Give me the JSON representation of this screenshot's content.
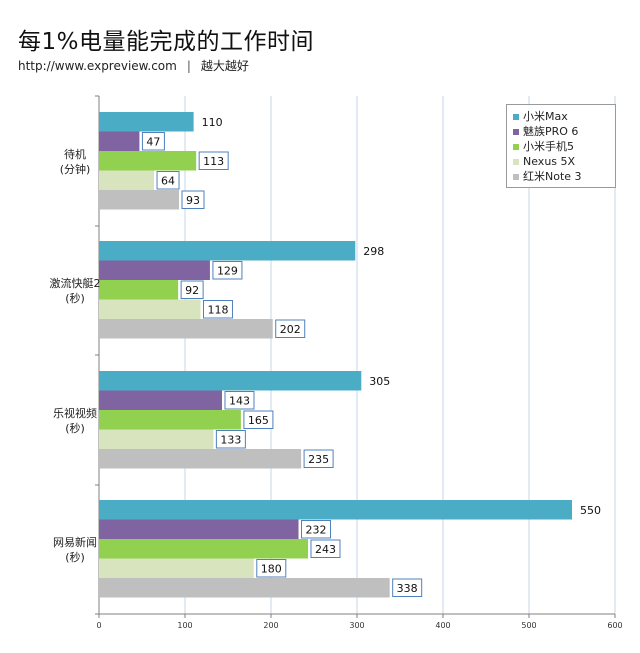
{
  "header": {
    "title": "每1%电量能完成的工作时间",
    "url": "http://www.expreview.com",
    "separator": "|",
    "site_name": "越大越好"
  },
  "chart_data": {
    "type": "bar",
    "orientation": "horizontal",
    "categories": [
      [
        "待机",
        "(分钟)"
      ],
      [
        "激流快艇2",
        "(秒)"
      ],
      [
        "乐视视频",
        "(秒)"
      ],
      [
        "网易新闻",
        "(秒)"
      ]
    ],
    "series": [
      {
        "name": "小米Max",
        "color": "#4bacc6",
        "values": [
          110,
          298,
          305,
          550
        ],
        "label_boxed": false
      },
      {
        "name": "魅族PRO 6",
        "color": "#8064a2",
        "values": [
          47,
          129,
          143,
          232
        ],
        "label_boxed": true
      },
      {
        "name": "小米手机5",
        "color": "#92d050",
        "values": [
          113,
          92,
          165,
          243
        ],
        "label_boxed": true
      },
      {
        "name": "Nexus 5X",
        "color": "#d7e4bd",
        "values": [
          64,
          118,
          133,
          180
        ],
        "label_boxed": true
      },
      {
        "name": "红米Note 3",
        "color": "#bfbfbf",
        "values": [
          93,
          202,
          235,
          338
        ],
        "label_boxed": true
      }
    ],
    "xlim": [
      0,
      600
    ],
    "xticks": [
      0,
      100,
      200,
      300,
      400,
      500,
      600
    ],
    "grid": true,
    "legend_position": "top-right"
  }
}
